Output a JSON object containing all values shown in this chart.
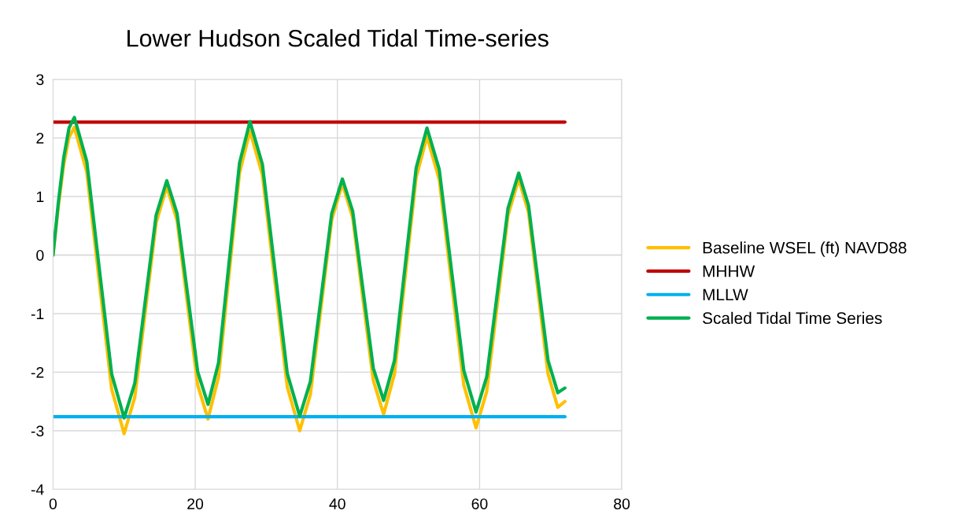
{
  "chart_data": {
    "type": "line",
    "title": "Lower Hudson Scaled Tidal Time-series",
    "xlim": [
      0,
      80
    ],
    "xticks": [
      0,
      20,
      40,
      60,
      80
    ],
    "ylim": [
      -4,
      3
    ],
    "yticks": [
      -4,
      -3,
      -2,
      -1,
      0,
      1,
      2,
      3
    ],
    "grid": true,
    "legend": "right",
    "line_style": "solid",
    "marker": "none",
    "series": [
      {
        "name": "Baseline WSEL (ft) NAVD88",
        "color": "#ffc000",
        "x": [
          0,
          0.75,
          1.5,
          2.25,
          3,
          4.75,
          6.5,
          8.25,
          10,
          11.5,
          13,
          14.5,
          16,
          17.45,
          18.9,
          20.35,
          21.8,
          23.28,
          24.75,
          26.23,
          27.7,
          29.45,
          31.2,
          32.95,
          34.7,
          36.2,
          37.7,
          39.2,
          40.7,
          42.15,
          43.6,
          45.05,
          46.5,
          48.03,
          49.55,
          51.08,
          52.6,
          54.33,
          56.05,
          57.78,
          59.5,
          61,
          62.5,
          64,
          65.5,
          66.88,
          68.25,
          69.63,
          71,
          72
        ],
        "values": [
          0,
          0.83,
          1.54,
          2.01,
          2.18,
          1.42,
          -0.44,
          -2.29,
          -3.05,
          -2.43,
          -0.94,
          0.55,
          1.17,
          0.59,
          -0.82,
          -2.22,
          -2.8,
          -2.08,
          -0.34,
          1.4,
          2.12,
          1.37,
          -0.44,
          -2.25,
          -3.0,
          -2.38,
          -0.89,
          0.6,
          1.22,
          0.64,
          -0.75,
          -2.14,
          -2.72,
          -2.03,
          -0.35,
          1.33,
          2.02,
          1.29,
          -0.47,
          -2.22,
          -2.95,
          -2.33,
          -0.83,
          0.68,
          1.3,
          0.73,
          -0.65,
          -2.03,
          -2.6,
          -2.5
        ]
      },
      {
        "name": "MHHW",
        "color": "#c00000",
        "x": [
          0,
          72
        ],
        "values": [
          2.27,
          2.27
        ]
      },
      {
        "name": "MLLW",
        "color": "#00b0f0",
        "x": [
          0,
          72
        ],
        "values": [
          -2.76,
          -2.76
        ]
      },
      {
        "name": "Scaled Tidal Time Series",
        "color": "#00b050",
        "x": [
          0,
          0.75,
          1.5,
          2.25,
          3,
          4.75,
          6.5,
          8.25,
          10,
          11.5,
          13,
          14.5,
          16,
          17.45,
          18.9,
          20.35,
          21.8,
          23.28,
          24.75,
          26.23,
          27.7,
          29.45,
          31.2,
          32.95,
          34.7,
          36.2,
          37.7,
          39.2,
          40.7,
          42.15,
          43.6,
          45.05,
          46.5,
          48.03,
          49.55,
          51.08,
          52.6,
          54.33,
          56.05,
          57.78,
          59.5,
          61,
          62.5,
          64,
          65.5,
          66.88,
          68.25,
          69.63,
          71,
          72
        ],
        "values": [
          0,
          0.9,
          1.66,
          2.17,
          2.35,
          1.6,
          -0.22,
          -2.03,
          -2.78,
          -2.19,
          -0.76,
          0.68,
          1.27,
          0.71,
          -0.64,
          -1.99,
          -2.55,
          -1.84,
          -0.14,
          1.57,
          2.28,
          1.55,
          -0.24,
          -2.02,
          -2.75,
          -2.16,
          -0.73,
          0.71,
          1.3,
          0.75,
          -0.59,
          -1.93,
          -2.48,
          -1.8,
          -0.16,
          1.49,
          2.17,
          1.46,
          -0.26,
          -1.97,
          -2.68,
          -2.08,
          -0.64,
          0.8,
          1.4,
          0.85,
          -0.48,
          -1.8,
          -2.35,
          -2.27
        ]
      }
    ]
  }
}
